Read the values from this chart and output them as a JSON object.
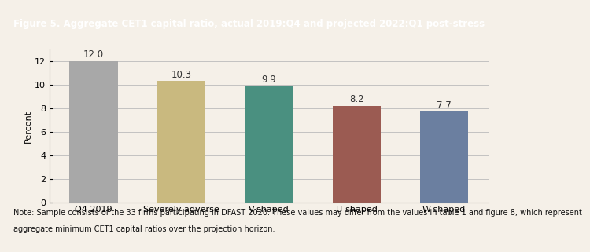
{
  "title": "Figure 5. Aggregate CET1 capital ratio, actual 2019:Q4 and projected 2022:Q1 post-stress",
  "title_bg_color": "#7B1A1A",
  "title_text_color": "#FFFFFF",
  "background_color": "#F5F0E8",
  "categories": [
    "Q4 2019",
    "Severely adverse",
    "V-shaped",
    "U-shaped",
    "W-shaped"
  ],
  "values": [
    12.0,
    10.3,
    9.9,
    8.2,
    7.7
  ],
  "bar_colors": [
    "#A8A8A8",
    "#C9B97F",
    "#4A9080",
    "#9B5B52",
    "#6B7FA0"
  ],
  "ylabel": "Percent",
  "ylim": [
    0,
    13
  ],
  "yticks": [
    0,
    2,
    4,
    6,
    8,
    10,
    12
  ],
  "note_line1": "Note: Sample consists of the 33 firms participating in DFAST 2020. These values may differ from the values in table 1 and figure 8, which represent",
  "note_line2": "aggregate minimum CET1 capital ratios over the projection horizon.",
  "note_fontsize": 7.0,
  "bar_label_fontsize": 8.5,
  "axis_label_fontsize": 8.0,
  "tick_fontsize": 8.0,
  "title_fontsize": 8.5
}
